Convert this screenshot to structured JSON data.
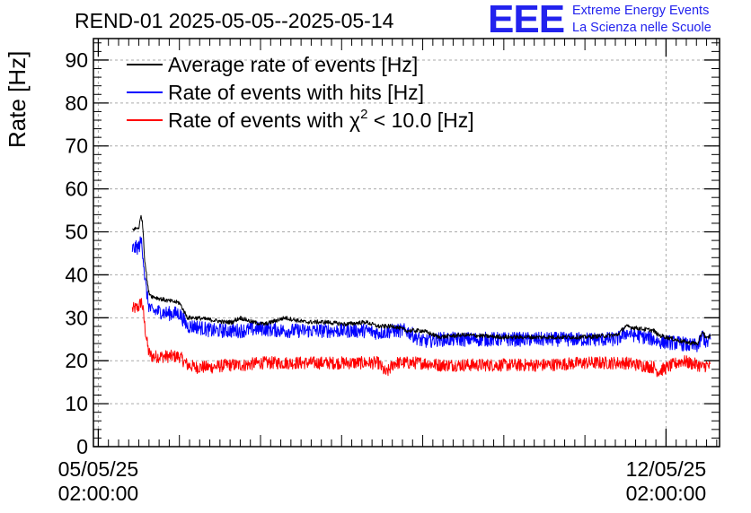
{
  "header": {
    "title": "REND-01 2025-05-05--2025-05-14",
    "logo_mark": "EEE",
    "logo_line1": "Extreme Energy Events",
    "logo_line2": "La Scienza nelle Scuole"
  },
  "colors": {
    "average": "#000000",
    "hits": "#0000ff",
    "chi2": "#ff0000",
    "grid": "#aaaaaa",
    "logo": "#2222ee"
  },
  "chart_data": {
    "type": "line",
    "title": "REND-01 2025-05-05--2025-05-14",
    "ylabel": "Rate [Hz]",
    "xlabel": "",
    "ylim": [
      0,
      95
    ],
    "yticks": [
      0,
      10,
      20,
      30,
      40,
      50,
      60,
      70,
      80,
      90
    ],
    "x_unit": "days since 05/05/25 02:00:00",
    "xlim": [
      -0.06,
      7.66
    ],
    "xticks": [
      {
        "value": 0,
        "line1": "05/05/25",
        "line2": "02:00:00"
      },
      {
        "value": 7,
        "line1": "12/05/25",
        "line2": "02:00:00"
      }
    ],
    "grid": true,
    "legend": "top-left",
    "series": [
      {
        "name": "Average rate of events [Hz]",
        "legend_label_main": "Average rate of events [Hz]",
        "color": "#000000",
        "noise": 0.5,
        "x": [
          0.42,
          0.5,
          0.53,
          0.55,
          0.57,
          0.6,
          0.62,
          0.66,
          0.75,
          0.85,
          1.0,
          1.1,
          1.2,
          1.4,
          1.55,
          1.65,
          1.75,
          1.9,
          2.05,
          2.3,
          2.55,
          2.8,
          3.05,
          3.3,
          3.45,
          3.65,
          3.8,
          4.0,
          4.2,
          4.5,
          5.0,
          5.5,
          6.0,
          6.4,
          6.5,
          6.85,
          6.9,
          7.2,
          7.28,
          7.4,
          7.45,
          7.5,
          7.55
        ],
        "y": [
          50.5,
          51,
          54,
          51,
          44,
          39,
          36,
          35,
          34.5,
          34,
          33.5,
          30,
          30,
          29.5,
          29,
          29,
          30,
          29,
          28.5,
          30,
          29,
          29,
          28.5,
          29,
          28,
          28,
          27,
          27,
          25.5,
          26,
          25.5,
          25.5,
          25.5,
          26,
          28,
          27,
          26,
          24.5,
          24.2,
          24,
          27,
          25,
          26
        ]
      },
      {
        "name": "Rate of events with hits [Hz]",
        "legend_label_main": "Rate of events with hits [Hz]",
        "color": "#0000ff",
        "noise": 1.7,
        "x": [
          0.42,
          0.5,
          0.53,
          0.55,
          0.58,
          0.62,
          0.66,
          0.75,
          0.85,
          1.0,
          1.1,
          1.2,
          1.4,
          1.55,
          1.75,
          2.0,
          2.3,
          2.55,
          2.8,
          3.05,
          3.3,
          3.45,
          3.65,
          3.8,
          4.0,
          4.2,
          4.5,
          5.0,
          5.5,
          6.0,
          6.4,
          6.5,
          6.85,
          6.9,
          7.2,
          7.28,
          7.4,
          7.45,
          7.5,
          7.55
        ],
        "y": [
          46,
          46.5,
          48,
          45,
          38,
          33,
          31.5,
          31.5,
          31,
          31,
          28,
          28,
          27,
          27,
          27,
          27.5,
          27,
          27,
          27,
          27,
          27,
          26.5,
          27,
          27,
          24.5,
          25,
          25,
          25,
          25,
          25,
          25,
          26.5,
          25,
          24.5,
          24,
          23.5,
          23.5,
          26,
          24,
          25
        ]
      },
      {
        "name": "Rate of events with χ2 < 10.0 [Hz]",
        "legend_label_main": "Rate of events with χ",
        "legend_label_sup": "2",
        "legend_label_tail": " < 10.0 [Hz]",
        "color": "#ff0000",
        "noise": 1.5,
        "x": [
          0.42,
          0.5,
          0.53,
          0.55,
          0.58,
          0.62,
          0.66,
          0.75,
          0.85,
          1.0,
          1.1,
          1.2,
          1.4,
          1.6,
          1.8,
          2.0,
          2.3,
          2.55,
          2.8,
          3.05,
          3.3,
          3.45,
          3.55,
          3.65,
          3.8,
          4.0,
          4.2,
          4.5,
          5.0,
          5.5,
          6.0,
          6.4,
          6.5,
          6.85,
          6.9,
          7.2,
          7.28,
          7.4,
          7.45,
          7.5,
          7.55
        ],
        "y": [
          32,
          32.5,
          34,
          32,
          27,
          22,
          21,
          21,
          21,
          21,
          19,
          18.5,
          18.5,
          19,
          19,
          19.5,
          19.5,
          19.5,
          19.5,
          19.5,
          19.5,
          19.5,
          17,
          19.5,
          19.5,
          19.5,
          19,
          19,
          19,
          19,
          19.5,
          19.5,
          19.5,
          18.5,
          17.5,
          20,
          19.5,
          19,
          18.5,
          19,
          18.5
        ]
      }
    ]
  }
}
